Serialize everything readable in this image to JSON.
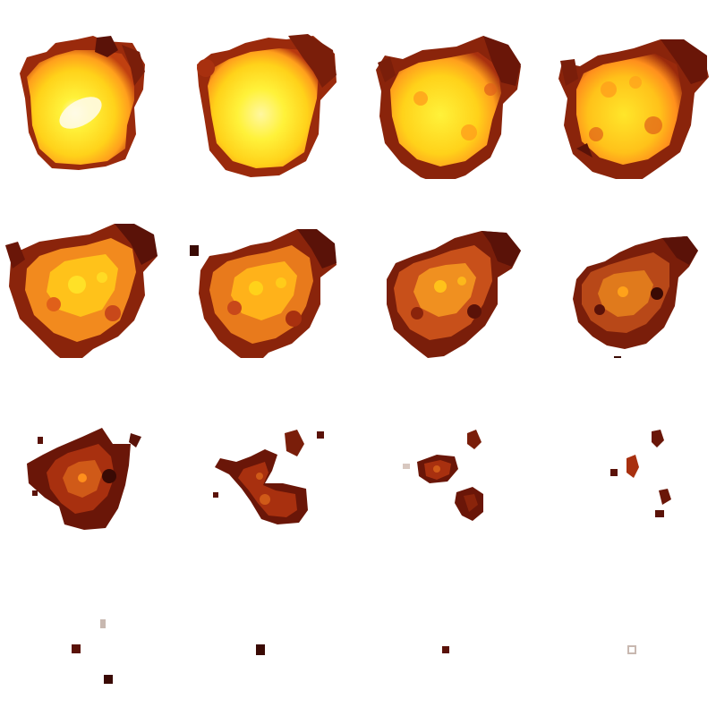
{
  "sprite_sheet": {
    "rows": 4,
    "columns": 4,
    "frame_count": 16,
    "background_color": "#ffffff",
    "palette": {
      "core_white": "#fffbe6",
      "bright_yellow": "#fff23a",
      "yellow": "#ffd21a",
      "orange": "#ff9f1c",
      "deep_orange": "#e0601a",
      "red_brown": "#a8300f",
      "dark_brown": "#5a1208",
      "ember": "#3a0a04"
    },
    "frames": [
      {
        "index": 1,
        "phase": "flash",
        "intensity": 1.0,
        "size": 1.0
      },
      {
        "index": 2,
        "phase": "flash",
        "intensity": 0.95,
        "size": 1.0
      },
      {
        "index": 3,
        "phase": "burn",
        "intensity": 0.85,
        "size": 1.0
      },
      {
        "index": 4,
        "phase": "burn",
        "intensity": 0.78,
        "size": 0.98
      },
      {
        "index": 5,
        "phase": "burn",
        "intensity": 0.66,
        "size": 1.02
      },
      {
        "index": 6,
        "phase": "burn",
        "intensity": 0.58,
        "size": 0.97
      },
      {
        "index": 7,
        "phase": "cooling",
        "intensity": 0.48,
        "size": 0.93
      },
      {
        "index": 8,
        "phase": "cooling",
        "intensity": 0.4,
        "size": 0.88
      },
      {
        "index": 9,
        "phase": "breakup",
        "intensity": 0.3,
        "size": 0.78
      },
      {
        "index": 10,
        "phase": "breakup",
        "intensity": 0.24,
        "size": 0.62
      },
      {
        "index": 11,
        "phase": "fragments",
        "intensity": 0.18,
        "size": 0.42
      },
      {
        "index": 12,
        "phase": "fragments",
        "intensity": 0.14,
        "size": 0.3
      },
      {
        "index": 13,
        "phase": "embers",
        "intensity": 0.1,
        "size": 0.16
      },
      {
        "index": 14,
        "phase": "embers",
        "intensity": 0.08,
        "size": 0.08
      },
      {
        "index": 15,
        "phase": "embers",
        "intensity": 0.05,
        "size": 0.05
      },
      {
        "index": 16,
        "phase": "embers",
        "intensity": 0.02,
        "size": 0.04
      }
    ]
  }
}
